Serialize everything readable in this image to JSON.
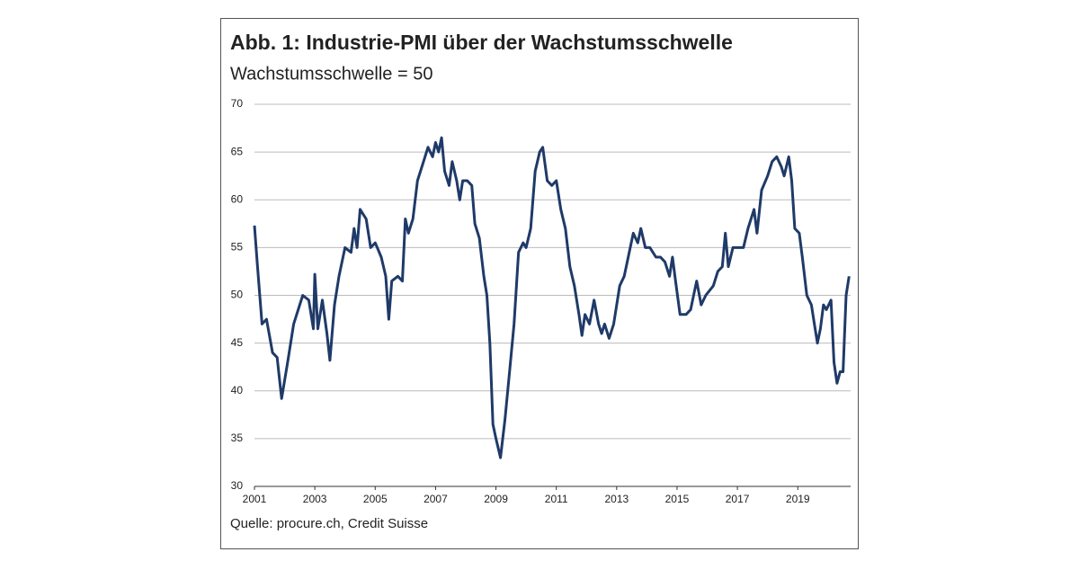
{
  "chart_data": {
    "type": "line",
    "title": "Abb. 1: Industrie-PMI über der Wachstumsschwelle",
    "subtitle": "Wachstumsschwelle = 50",
    "source": "Quelle: procure.ch, Credit Suisse",
    "x": [
      2001.0,
      2001.1,
      2001.25,
      2001.4,
      2001.6,
      2001.75,
      2001.9,
      2002.1,
      2002.3,
      2002.6,
      2002.8,
      2002.95,
      2003.0,
      2003.1,
      2003.25,
      2003.4,
      2003.5,
      2003.65,
      2003.8,
      2004.0,
      2004.2,
      2004.3,
      2004.4,
      2004.5,
      2004.7,
      2004.85,
      2005.0,
      2005.2,
      2005.35,
      2005.45,
      2005.55,
      2005.75,
      2005.9,
      2006.0,
      2006.1,
      2006.25,
      2006.4,
      2006.6,
      2006.75,
      2006.9,
      2007.0,
      2007.1,
      2007.2,
      2007.3,
      2007.45,
      2007.55,
      2007.7,
      2007.8,
      2007.9,
      2008.05,
      2008.2,
      2008.3,
      2008.45,
      2008.6,
      2008.7,
      2008.8,
      2008.9,
      2009.0,
      2009.15,
      2009.3,
      2009.45,
      2009.6,
      2009.75,
      2009.9,
      2010.0,
      2010.15,
      2010.3,
      2010.45,
      2010.55,
      2010.7,
      2010.85,
      2011.0,
      2011.15,
      2011.3,
      2011.45,
      2011.6,
      2011.75,
      2011.85,
      2011.95,
      2012.1,
      2012.25,
      2012.4,
      2012.5,
      2012.6,
      2012.75,
      2012.9,
      2013.1,
      2013.25,
      2013.45,
      2013.55,
      2013.7,
      2013.8,
      2013.95,
      2014.1,
      2014.3,
      2014.45,
      2014.6,
      2014.75,
      2014.85,
      2014.95,
      2015.1,
      2015.3,
      2015.45,
      2015.55,
      2015.65,
      2015.8,
      2015.95,
      2016.2,
      2016.35,
      2016.5,
      2016.6,
      2016.7,
      2016.85,
      2017.0,
      2017.2,
      2017.35,
      2017.55,
      2017.65,
      2017.8,
      2018.0,
      2018.15,
      2018.3,
      2018.45,
      2018.55,
      2018.7,
      2018.8,
      2018.9,
      2019.05,
      2019.15,
      2019.3,
      2019.45,
      2019.55,
      2019.65,
      2019.75,
      2019.85,
      2019.95,
      2020.1,
      2020.2,
      2020.3,
      2020.4,
      2020.5,
      2020.6,
      2020.7
    ],
    "series": [
      {
        "color": "#1f3a68",
        "values": [
          57.3,
          53,
          47,
          47.5,
          44,
          43.5,
          39.2,
          43,
          47,
          50,
          49.5,
          46.5,
          52.2,
          46.5,
          49.5,
          46,
          43.2,
          49,
          52,
          55,
          54.5,
          57,
          55,
          59,
          58,
          55,
          55.5,
          54,
          52,
          47.5,
          51.5,
          52,
          51.5,
          58,
          56.5,
          58,
          62,
          64,
          65.5,
          64.5,
          66,
          65,
          66.5,
          63,
          61.5,
          64,
          62,
          60,
          62,
          62,
          61.5,
          57.5,
          56,
          52,
          50,
          45,
          36.5,
          35,
          33,
          37,
          42,
          47,
          54.5,
          55.5,
          55,
          57,
          63,
          65,
          65.5,
          62,
          61.5,
          62,
          59,
          57,
          53,
          51,
          48,
          45.8,
          48,
          47,
          49.5,
          47,
          46,
          47,
          45.5,
          47,
          51,
          52,
          55,
          56.5,
          55.5,
          57,
          55,
          55,
          54,
          54,
          53.5,
          52,
          54,
          51.5,
          48,
          48,
          48.5,
          50,
          51.5,
          49,
          50,
          51,
          52.5,
          53,
          56.5,
          53,
          55,
          55,
          55,
          57,
          59,
          56.5,
          61,
          62.5,
          64,
          64.5,
          63.5,
          62.5,
          64.5,
          62,
          57,
          56.5,
          54,
          50,
          49,
          47,
          45,
          46.5,
          49,
          48.5,
          49.5,
          43,
          40.8,
          42,
          42,
          50,
          52
        ]
      }
    ],
    "xlim": [
      2001,
      2020.75
    ],
    "xticks": [
      2001,
      2003,
      2005,
      2007,
      2009,
      2011,
      2013,
      2015,
      2017,
      2019
    ],
    "ylim": [
      30,
      70
    ],
    "yticks": [
      30,
      35,
      40,
      45,
      50,
      55,
      60,
      65,
      70
    ],
    "grid": true
  }
}
